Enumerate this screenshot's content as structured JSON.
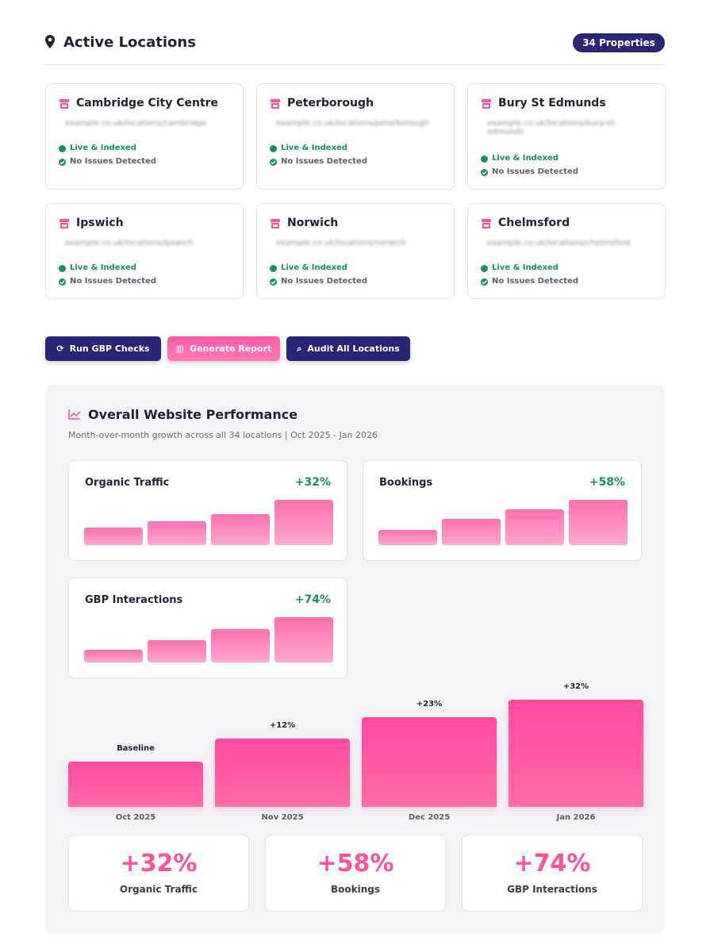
{
  "header": {
    "title": "Active Locations",
    "badge": "34 Properties"
  },
  "locations": [
    {
      "name": "Cambridge City Centre",
      "url": "example.co.uk/locations/cambridge",
      "status": "Live & Indexed",
      "issues": "No Issues Detected"
    },
    {
      "name": "Peterborough",
      "url": "example.co.uk/locations/peterborough",
      "status": "Live & Indexed",
      "issues": "No Issues Detected"
    },
    {
      "name": "Bury St Edmunds",
      "url": "example.co.uk/locations/bury-st-edmunds",
      "status": "Live & Indexed",
      "issues": "No Issues Detected"
    },
    {
      "name": "Ipswich",
      "url": "example.co.uk/locations/ipswich",
      "status": "Live & Indexed",
      "issues": "No Issues Detected"
    },
    {
      "name": "Norwich",
      "url": "example.co.uk/locations/norwich",
      "status": "Live & Indexed",
      "issues": "No Issues Detected"
    },
    {
      "name": "Chelmsford",
      "url": "example.co.uk/locations/chelmsford",
      "status": "Live & Indexed",
      "issues": "No Issues Detected"
    }
  ],
  "buttons": [
    "Run GBP Checks",
    "Generate Report",
    "Audit All Locations"
  ],
  "performance": {
    "title": "Overall Website Performance",
    "subtitle": "Month-over-month growth across all 34 locations | Oct 2025 - Jan 2026",
    "metrics": [
      {
        "name": "Organic Traffic",
        "change": "+32%"
      },
      {
        "name": "Bookings",
        "change": "+58%"
      },
      {
        "name": "GBP Interactions",
        "change": "+74%"
      }
    ],
    "growth_chart": {
      "type": "bar",
      "categories": [
        "Oct 2025",
        "Nov 2025",
        "Dec 2025",
        "Jan 2026"
      ],
      "values": [
        0,
        12,
        23,
        32
      ],
      "value_labels": [
        "Baseline",
        "+12%",
        "+23%",
        "+32%"
      ]
    },
    "summary": [
      {
        "value": "+32%",
        "label": "Organic Traffic"
      },
      {
        "value": "+58%",
        "label": "Bookings"
      },
      {
        "value": "+74%",
        "label": "GBP Interactions"
      }
    ]
  }
}
